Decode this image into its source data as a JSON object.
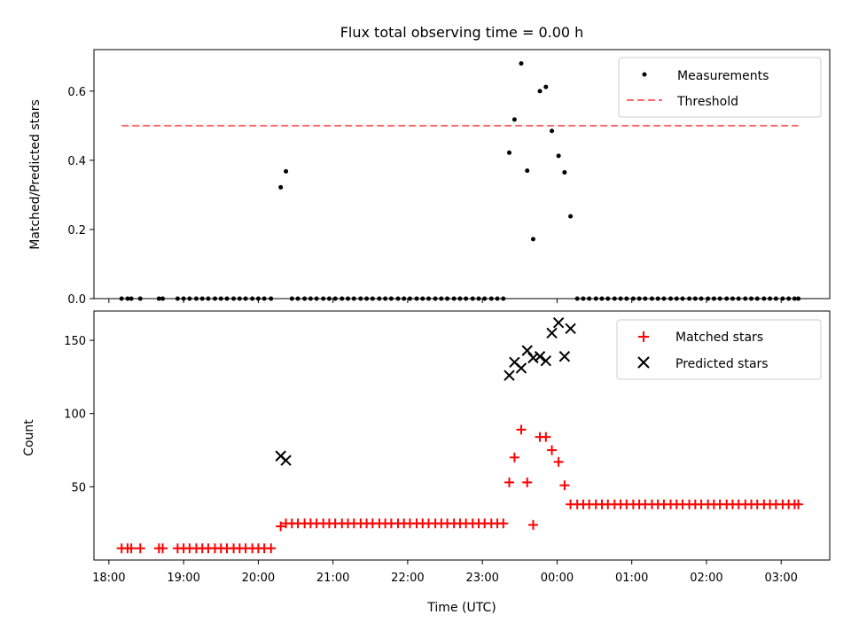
{
  "chart_data": [
    {
      "type": "scatter",
      "title": "Flux total observing time = 0.00 h",
      "xlabel": "",
      "ylabel": "Matched/Predicted stars",
      "xlim": [
        17.8,
        27.65
      ],
      "ylim": [
        0,
        0.72
      ],
      "yticks": [
        "0.0",
        "0.2",
        "0.4",
        "0.6"
      ],
      "ytick_values": [
        0,
        0.2,
        0.4,
        0.6
      ],
      "legend": [
        "Measurements",
        "Threshold"
      ],
      "threshold": {
        "value": 0.5,
        "x_range": [
          18.17,
          27.23
        ],
        "color": "#ff6b6b"
      },
      "series": [
        {
          "name": "Measurements",
          "color": "#000000",
          "x": [
            18.17,
            18.25,
            18.3,
            18.42,
            18.67,
            18.72,
            18.92,
            19.0,
            19.08,
            19.17,
            19.25,
            19.33,
            19.42,
            19.5,
            19.58,
            19.67,
            19.75,
            19.83,
            19.92,
            20.0,
            20.08,
            20.17,
            20.3,
            20.37,
            20.45,
            20.53,
            20.62,
            20.7,
            20.78,
            20.87,
            20.95,
            21.03,
            21.12,
            21.2,
            21.28,
            21.37,
            21.45,
            21.53,
            21.62,
            21.7,
            21.78,
            21.87,
            21.95,
            22.03,
            22.12,
            22.2,
            22.28,
            22.37,
            22.45,
            22.53,
            22.62,
            22.7,
            22.78,
            22.87,
            22.95,
            23.03,
            23.12,
            23.2,
            23.28,
            23.36,
            23.43,
            23.52,
            23.6,
            23.68,
            23.77,
            23.85,
            23.93,
            24.02,
            24.1,
            24.18,
            24.27,
            24.35,
            24.43,
            24.52,
            24.6,
            24.68,
            24.77,
            24.85,
            24.93,
            25.02,
            25.1,
            25.18,
            25.27,
            25.35,
            25.43,
            25.52,
            25.6,
            25.68,
            25.77,
            25.85,
            25.93,
            26.02,
            26.1,
            26.18,
            26.27,
            26.35,
            26.43,
            26.52,
            26.6,
            26.68,
            26.77,
            26.85,
            26.93,
            27.02,
            27.1,
            27.18,
            27.23
          ],
          "y": [
            0,
            0,
            0,
            0,
            0,
            0,
            0,
            0,
            0,
            0,
            0,
            0,
            0,
            0,
            0,
            0,
            0,
            0,
            0,
            0,
            0,
            0,
            0.322,
            0.368,
            0,
            0,
            0,
            0,
            0,
            0,
            0,
            0,
            0,
            0,
            0,
            0,
            0,
            0,
            0,
            0,
            0,
            0,
            0,
            0,
            0,
            0,
            0,
            0,
            0,
            0,
            0,
            0,
            0,
            0,
            0,
            0,
            0,
            0,
            0,
            0.422,
            0.518,
            0.68,
            0.37,
            0.172,
            0.6,
            0.612,
            0.485,
            0.413,
            0.365,
            0.238,
            0,
            0,
            0,
            0,
            0,
            0,
            0,
            0,
            0,
            0,
            0,
            0,
            0,
            0,
            0,
            0,
            0,
            0,
            0,
            0,
            0,
            0,
            0,
            0,
            0,
            0,
            0,
            0,
            0,
            0,
            0,
            0,
            0,
            0,
            0,
            0,
            0
          ]
        }
      ]
    },
    {
      "type": "scatter",
      "title": "",
      "xlabel": "Time (UTC)",
      "ylabel": "Count",
      "xlim": [
        17.8,
        27.65
      ],
      "ylim": [
        0,
        170
      ],
      "yticks": [
        "50",
        "100",
        "150"
      ],
      "ytick_values": [
        50,
        100,
        150
      ],
      "xticks": [
        "18:00",
        "19:00",
        "20:00",
        "21:00",
        "22:00",
        "23:00",
        "00:00",
        "01:00",
        "02:00",
        "03:00"
      ],
      "xtick_values": [
        18,
        19,
        20,
        21,
        22,
        23,
        24,
        25,
        26,
        27
      ],
      "legend": [
        "Matched stars",
        "Predicted stars"
      ],
      "series": [
        {
          "name": "Matched stars",
          "color": "#ff0000",
          "marker": "+",
          "x": [
            18.17,
            18.25,
            18.3,
            18.42,
            18.67,
            18.72,
            18.92,
            19.0,
            19.08,
            19.17,
            19.25,
            19.33,
            19.42,
            19.5,
            19.58,
            19.67,
            19.75,
            19.83,
            19.92,
            20.0,
            20.08,
            20.17,
            20.3,
            20.37,
            20.45,
            20.53,
            20.62,
            20.7,
            20.78,
            20.87,
            20.95,
            21.03,
            21.12,
            21.2,
            21.28,
            21.37,
            21.45,
            21.53,
            21.62,
            21.7,
            21.78,
            21.87,
            21.95,
            22.03,
            22.12,
            22.2,
            22.28,
            22.37,
            22.45,
            22.53,
            22.62,
            22.7,
            22.78,
            22.87,
            22.95,
            23.03,
            23.12,
            23.2,
            23.28,
            23.36,
            23.43,
            23.52,
            23.6,
            23.68,
            23.77,
            23.85,
            23.93,
            24.02,
            24.1,
            24.18,
            24.27,
            24.35,
            24.43,
            24.52,
            24.6,
            24.68,
            24.77,
            24.85,
            24.93,
            25.02,
            25.1,
            25.18,
            25.27,
            25.35,
            25.43,
            25.52,
            25.6,
            25.68,
            25.77,
            25.85,
            25.93,
            26.02,
            26.1,
            26.18,
            26.27,
            26.35,
            26.43,
            26.52,
            26.6,
            26.68,
            26.77,
            26.85,
            26.93,
            27.02,
            27.1,
            27.18,
            27.23
          ],
          "y": [
            8,
            8,
            8,
            8,
            8,
            8,
            8,
            8,
            8,
            8,
            8,
            8,
            8,
            8,
            8,
            8,
            8,
            8,
            8,
            8,
            8,
            8,
            23,
            25,
            25,
            25,
            25,
            25,
            25,
            25,
            25,
            25,
            25,
            25,
            25,
            25,
            25,
            25,
            25,
            25,
            25,
            25,
            25,
            25,
            25,
            25,
            25,
            25,
            25,
            25,
            25,
            25,
            25,
            25,
            25,
            25,
            25,
            25,
            25,
            53,
            70,
            89,
            53,
            24,
            84,
            84,
            75,
            67,
            51,
            38,
            38,
            38,
            38,
            38,
            38,
            38,
            38,
            38,
            38,
            38,
            38,
            38,
            38,
            38,
            38,
            38,
            38,
            38,
            38,
            38,
            38,
            38,
            38,
            38,
            38,
            38,
            38,
            38,
            38,
            38,
            38,
            38,
            38,
            38,
            38,
            38,
            38
          ]
        },
        {
          "name": "Predicted stars",
          "color": "#000000",
          "marker": "x",
          "x": [
            20.3,
            20.37,
            23.36,
            23.43,
            23.52,
            23.6,
            23.68,
            23.77,
            23.85,
            23.93,
            24.02,
            24.1,
            24.18
          ],
          "y": [
            71,
            68,
            126,
            135,
            131,
            143,
            138,
            139,
            136,
            155,
            162,
            139,
            158
          ]
        }
      ]
    }
  ]
}
